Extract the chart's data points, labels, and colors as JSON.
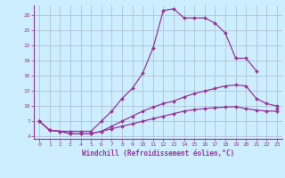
{
  "xlabel": "Windchill (Refroidissement éolien,°C)",
  "bg_color": "#cceeff",
  "line_color": "#993399",
  "grid_color": "#aabbcc",
  "x": [
    0,
    1,
    2,
    3,
    4,
    5,
    6,
    7,
    8,
    9,
    10,
    11,
    12,
    13,
    14,
    15,
    16,
    17,
    18,
    19,
    20,
    21,
    22,
    23
  ],
  "c_top": [
    7.0,
    5.2,
    5.0,
    5.0,
    5.0,
    5.0,
    7.0,
    9.0,
    11.5,
    13.5,
    16.5,
    21.5,
    29.0,
    29.3,
    27.5,
    27.5,
    27.5,
    26.5,
    24.5,
    19.5,
    19.5,
    17.0,
    null,
    9.5
  ],
  "c_mid": [
    7.0,
    5.2,
    5.0,
    4.5,
    4.5,
    4.5,
    5.0,
    6.0,
    7.0,
    8.0,
    9.0,
    9.8,
    10.5,
    11.0,
    11.8,
    12.5,
    13.0,
    13.5,
    14.0,
    14.2,
    14.0,
    11.5,
    10.5,
    10.0
  ],
  "c_bot": [
    7.0,
    5.2,
    5.0,
    4.5,
    4.5,
    4.5,
    5.0,
    5.5,
    6.0,
    6.5,
    7.0,
    7.5,
    8.0,
    8.5,
    9.0,
    9.3,
    9.5,
    9.7,
    9.8,
    9.9,
    9.5,
    9.2,
    9.0,
    9.0
  ],
  "ylim": [
    3.5,
    30
  ],
  "xlim": [
    -0.5,
    23.5
  ],
  "yticks": [
    4,
    7,
    10,
    13,
    16,
    19,
    22,
    25,
    28
  ],
  "xticks": [
    0,
    1,
    2,
    3,
    4,
    5,
    6,
    7,
    8,
    9,
    10,
    11,
    12,
    13,
    14,
    15,
    16,
    17,
    18,
    19,
    20,
    21,
    22,
    23
  ]
}
